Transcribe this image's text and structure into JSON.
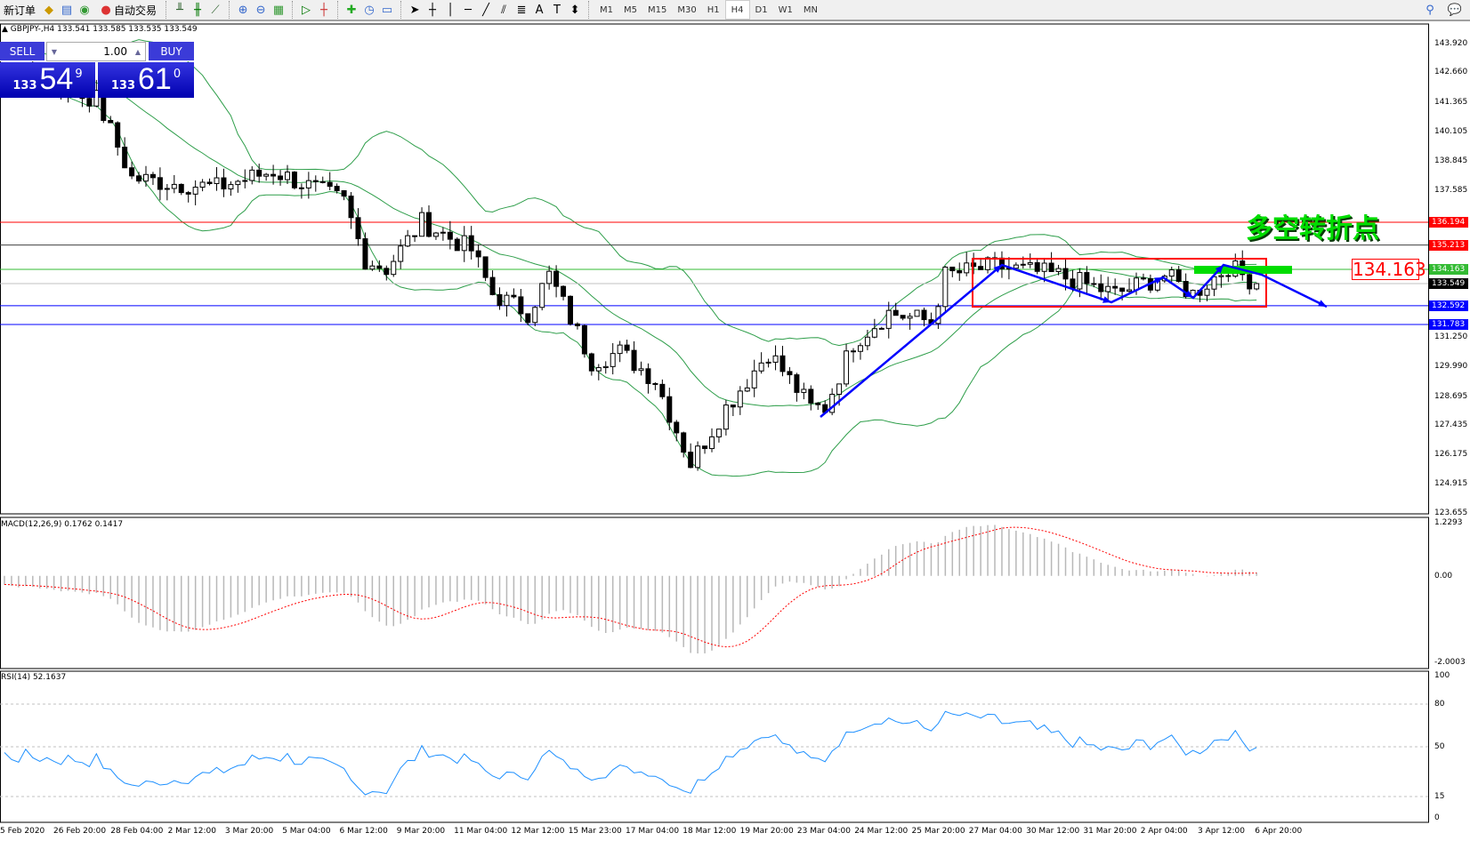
{
  "toolbar": {
    "new_order": "新订单",
    "auto_trading": "自动交易",
    "timeframes": [
      "M1",
      "M5",
      "M15",
      "M30",
      "H1",
      "H4",
      "D1",
      "W1",
      "MN"
    ],
    "active_timeframe": "H4"
  },
  "chart": {
    "header": "GBPJPY-,H4  133.541 133.585 133.535 133.549",
    "annotation_text": "多空转折点",
    "price_label": "134.163",
    "colors": {
      "bull": "#ffffff",
      "bear": "#000000",
      "bands": "#2e9e4a",
      "arrow": "#0000ff",
      "box": "#ff0000",
      "zone": "#00dd00",
      "annotation": "#00cc00"
    }
  },
  "trade_panel": {
    "sell_label": "SELL",
    "buy_label": "BUY",
    "lots": "1.00",
    "sell": {
      "small": "133",
      "big": "54",
      "tiny": "9"
    },
    "buy": {
      "small": "133",
      "big": "61",
      "tiny": "0"
    }
  },
  "price_axis": [
    "143.920",
    "142.660",
    "141.365",
    "140.105",
    "138.845",
    "137.585",
    "131.250",
    "129.990",
    "128.695",
    "127.435",
    "126.175",
    "124.915",
    "123.655"
  ],
  "level_tags": [
    {
      "value": "136.194",
      "color": "#ff0000",
      "line": "#ff0000"
    },
    {
      "value": "135.213",
      "color": "#ff0000",
      "line": "#404040"
    },
    {
      "value": "134.163",
      "color": "#33bb33",
      "line": "#33bb33"
    },
    {
      "value": "133.549",
      "color": "#000000",
      "line": "#c0c0c0"
    },
    {
      "value": "132.592",
      "color": "#0000ff",
      "line": "#0000ff"
    },
    {
      "value": "131.783",
      "color": "#0000ff",
      "line": "#0000ff"
    }
  ],
  "macd": {
    "label": "MACD(12,26,9) 0.1762 0.1417",
    "axis": [
      "1.2293",
      "0.00",
      "-2.0003"
    ]
  },
  "rsi": {
    "label": "RSI(14) 52.1637",
    "axis": [
      "100",
      "80",
      "50",
      "15",
      "0"
    ]
  },
  "time_axis": [
    "5 Feb 2020",
    "26 Feb 20:00",
    "28 Feb 04:00",
    "2 Mar 12:00",
    "3 Mar 20:00",
    "5 Mar 04:00",
    "6 Mar 12:00",
    "9 Mar 20:00",
    "11 Mar 04:00",
    "12 Mar 12:00",
    "15 Mar 23:00",
    "17 Mar 04:00",
    "18 Mar 12:00",
    "19 Mar 20:00",
    "23 Mar 04:00",
    "24 Mar 12:00",
    "25 Mar 20:00",
    "27 Mar 04:00",
    "30 Mar 12:00",
    "31 Mar 20:00",
    "2 Apr 04:00",
    "3 Apr 12:00",
    "6 Apr 20:00"
  ],
  "price_path": [
    [
      -30,
      143.8
    ],
    [
      0,
      142.6
    ],
    [
      13,
      141.5
    ],
    [
      18,
      138.1
    ],
    [
      23,
      137.9
    ],
    [
      30,
      137.7
    ],
    [
      38,
      138.4
    ],
    [
      48,
      137.1
    ],
    [
      51,
      134.6
    ],
    [
      54,
      134.2
    ],
    [
      59,
      136.2
    ],
    [
      66,
      135.0
    ],
    [
      69,
      133.1
    ],
    [
      74,
      132.3
    ],
    [
      77,
      133.9
    ],
    [
      83,
      130.2
    ],
    [
      87,
      130.6
    ],
    [
      92,
      129.4
    ],
    [
      97,
      125.8
    ],
    [
      102,
      128.2
    ],
    [
      108,
      130.6
    ],
    [
      114,
      128.2
    ],
    [
      116,
      128.2
    ],
    [
      120,
      131.0
    ],
    [
      125,
      132.3
    ],
    [
      131,
      131.9
    ],
    [
      133,
      133.9
    ],
    [
      140,
      134.3
    ],
    [
      149,
      133.9
    ],
    [
      157,
      133.1
    ],
    [
      164,
      133.9
    ],
    [
      168,
      133.1
    ],
    [
      173,
      134.3
    ],
    [
      177,
      133.55
    ]
  ]
}
